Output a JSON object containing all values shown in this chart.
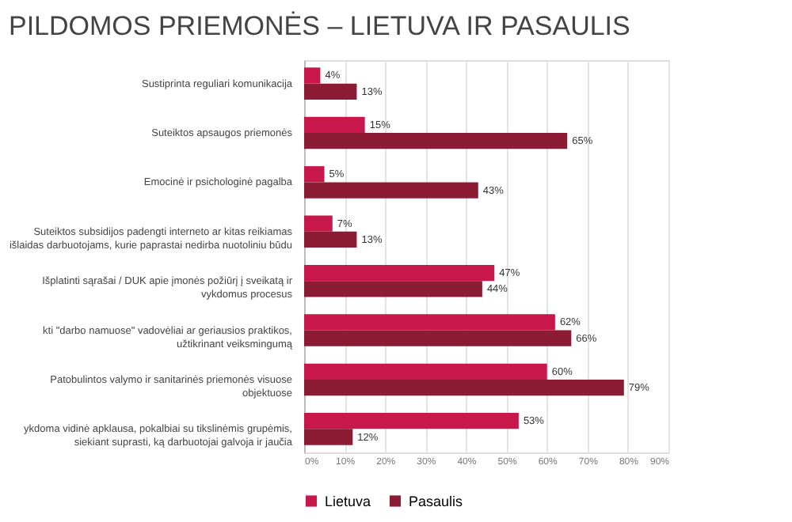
{
  "chart_data": {
    "type": "bar",
    "orientation": "horizontal",
    "title": "PILDOMOS PRIEMONĖS – LIETUVA IR PASAULIS",
    "categories": [
      "Sustiprinta reguliari komunikacija",
      "Suteiktos apsaugos priemonės",
      "Emocinė ir psichologinė pagalba",
      "Suteiktos subsidijos padengti interneto ar kitas reikiamas išlaidas darbuotojams, kurie paprastai nedirba nuotoliniu būdu",
      "Išplatinti sąrašai / DUK apie įmonės požiūrį į sveikatą ir vykdomus procesus",
      "kti \"darbo namuose\" vadovėliai ar geriausios praktikos, užtikrinant veiksmingumą",
      "Patobulintos valymo ir sanitarinės priemonės visuose objektuose",
      "ykdoma vidinė apklausa, pokalbiai su tikslinėmis grupėmis, siekiant suprasti, ką darbuotojai galvoja ir jaučia"
    ],
    "series": [
      {
        "name": "Lietuva",
        "color": "#c8174a",
        "values": [
          4,
          15,
          5,
          7,
          47,
          62,
          60,
          53
        ],
        "value_labels": [
          "4%",
          "15%",
          "5%",
          "7%",
          "47%",
          "62%",
          "60%",
          "53%"
        ]
      },
      {
        "name": "Pasaulis",
        "color": "#8c1c33",
        "values": [
          13,
          65,
          43,
          13,
          44,
          66,
          79,
          12
        ],
        "value_labels": [
          "13%",
          "65%",
          "43%",
          "13%",
          "44%",
          "66%",
          "79%",
          "12%"
        ]
      }
    ],
    "xlim": [
      0,
      90
    ],
    "xticks": [
      {
        "value": 0,
        "label": "0%"
      },
      {
        "value": 10,
        "label": "10%"
      },
      {
        "value": 20,
        "label": "20%"
      },
      {
        "value": 30,
        "label": "30%"
      },
      {
        "value": 40,
        "label": "40%"
      },
      {
        "value": 50,
        "label": "50%"
      },
      {
        "value": 60,
        "label": "60%"
      },
      {
        "value": 70,
        "label": "70%"
      },
      {
        "value": 80,
        "label": "80%"
      },
      {
        "value": 90,
        "label": "90%"
      }
    ],
    "grid": "x",
    "legend": "bottom"
  }
}
